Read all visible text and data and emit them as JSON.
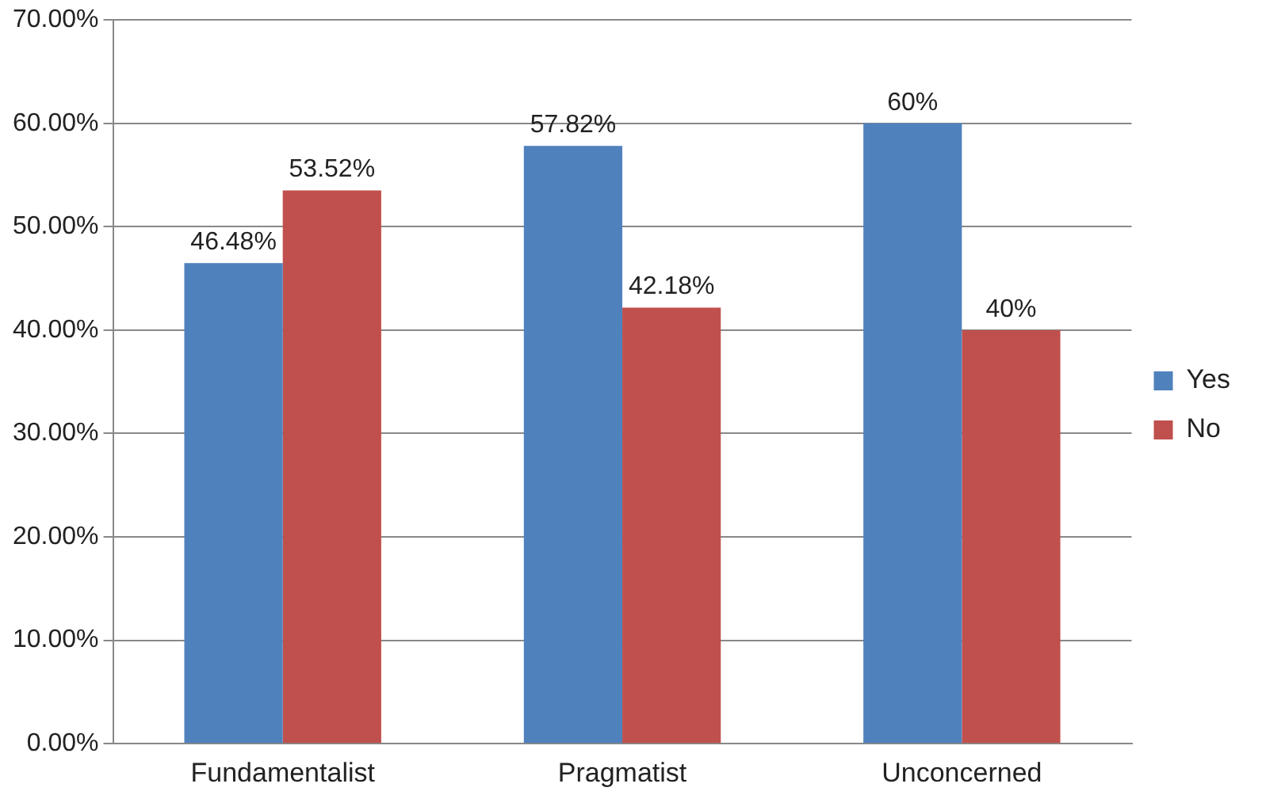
{
  "chart_data": {
    "type": "bar",
    "categories": [
      "Fundamentalist",
      "Pragmatist",
      "Unconcerned"
    ],
    "series": [
      {
        "name": "Yes",
        "color": "#4f81bd",
        "values": [
          46.48,
          57.82,
          60
        ],
        "value_labels": [
          "46.48%",
          "57.82%",
          "60%"
        ]
      },
      {
        "name": "No",
        "color": "#c0504d",
        "values": [
          53.52,
          42.18,
          40
        ],
        "value_labels": [
          "53.52%",
          "42.18%",
          "40%"
        ]
      }
    ],
    "ylim": [
      0,
      70
    ],
    "yticks": [
      {
        "value": 0,
        "label": "0.00%"
      },
      {
        "value": 10,
        "label": "10.00%"
      },
      {
        "value": 20,
        "label": "20.00%"
      },
      {
        "value": 30,
        "label": "30.00%"
      },
      {
        "value": 40,
        "label": "40.00%"
      },
      {
        "value": 50,
        "label": "50.00%"
      },
      {
        "value": 60,
        "label": "60.00%"
      },
      {
        "value": 70,
        "label": "70.00%"
      }
    ],
    "grid": "y",
    "legend": "right"
  }
}
